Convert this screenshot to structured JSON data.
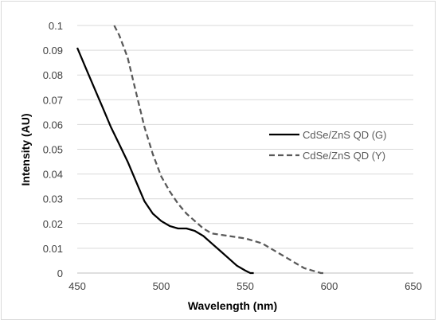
{
  "chart_data": {
    "type": "line",
    "title": "",
    "xlabel": "Wavelength (nm)",
    "ylabel": "Intensity (AU)",
    "xlim": [
      450,
      650
    ],
    "ylim": [
      0,
      0.1
    ],
    "x_ticks": [
      "450",
      "500",
      "550",
      "600",
      "650"
    ],
    "y_ticks": [
      "0",
      "0.01",
      "0.02",
      "0.03",
      "0.04",
      "0.05",
      "0.06",
      "0.07",
      "0.08",
      "0.09",
      "0.1"
    ],
    "grid": "horizontal",
    "legend_position": "right",
    "series": [
      {
        "name": "CdSe/ZnS QD (G)",
        "color": "#000000",
        "style": "solid",
        "x": [
          450,
          455,
          460,
          465,
          470,
          475,
          480,
          485,
          490,
          495,
          500,
          505,
          510,
          515,
          520,
          525,
          530,
          535,
          540,
          545,
          550,
          553,
          555
        ],
        "y": [
          0.091,
          0.083,
          0.075,
          0.067,
          0.059,
          0.052,
          0.045,
          0.037,
          0.029,
          0.024,
          0.021,
          0.019,
          0.018,
          0.018,
          0.017,
          0.015,
          0.012,
          0.009,
          0.006,
          0.003,
          0.001,
          0.0,
          0.0
        ]
      },
      {
        "name": "CdSe/ZnS QD (Y)",
        "color": "#595959",
        "style": "dashed",
        "x": [
          472,
          475,
          480,
          485,
          490,
          495,
          500,
          505,
          510,
          515,
          520,
          525,
          530,
          540,
          550,
          555,
          560,
          565,
          570,
          575,
          580,
          585,
          590,
          595,
          598
        ],
        "y": [
          0.1,
          0.096,
          0.087,
          0.073,
          0.059,
          0.048,
          0.039,
          0.033,
          0.028,
          0.024,
          0.021,
          0.018,
          0.016,
          0.015,
          0.014,
          0.013,
          0.012,
          0.01,
          0.008,
          0.006,
          0.004,
          0.002,
          0.001,
          0.0,
          0.0
        ]
      }
    ]
  }
}
